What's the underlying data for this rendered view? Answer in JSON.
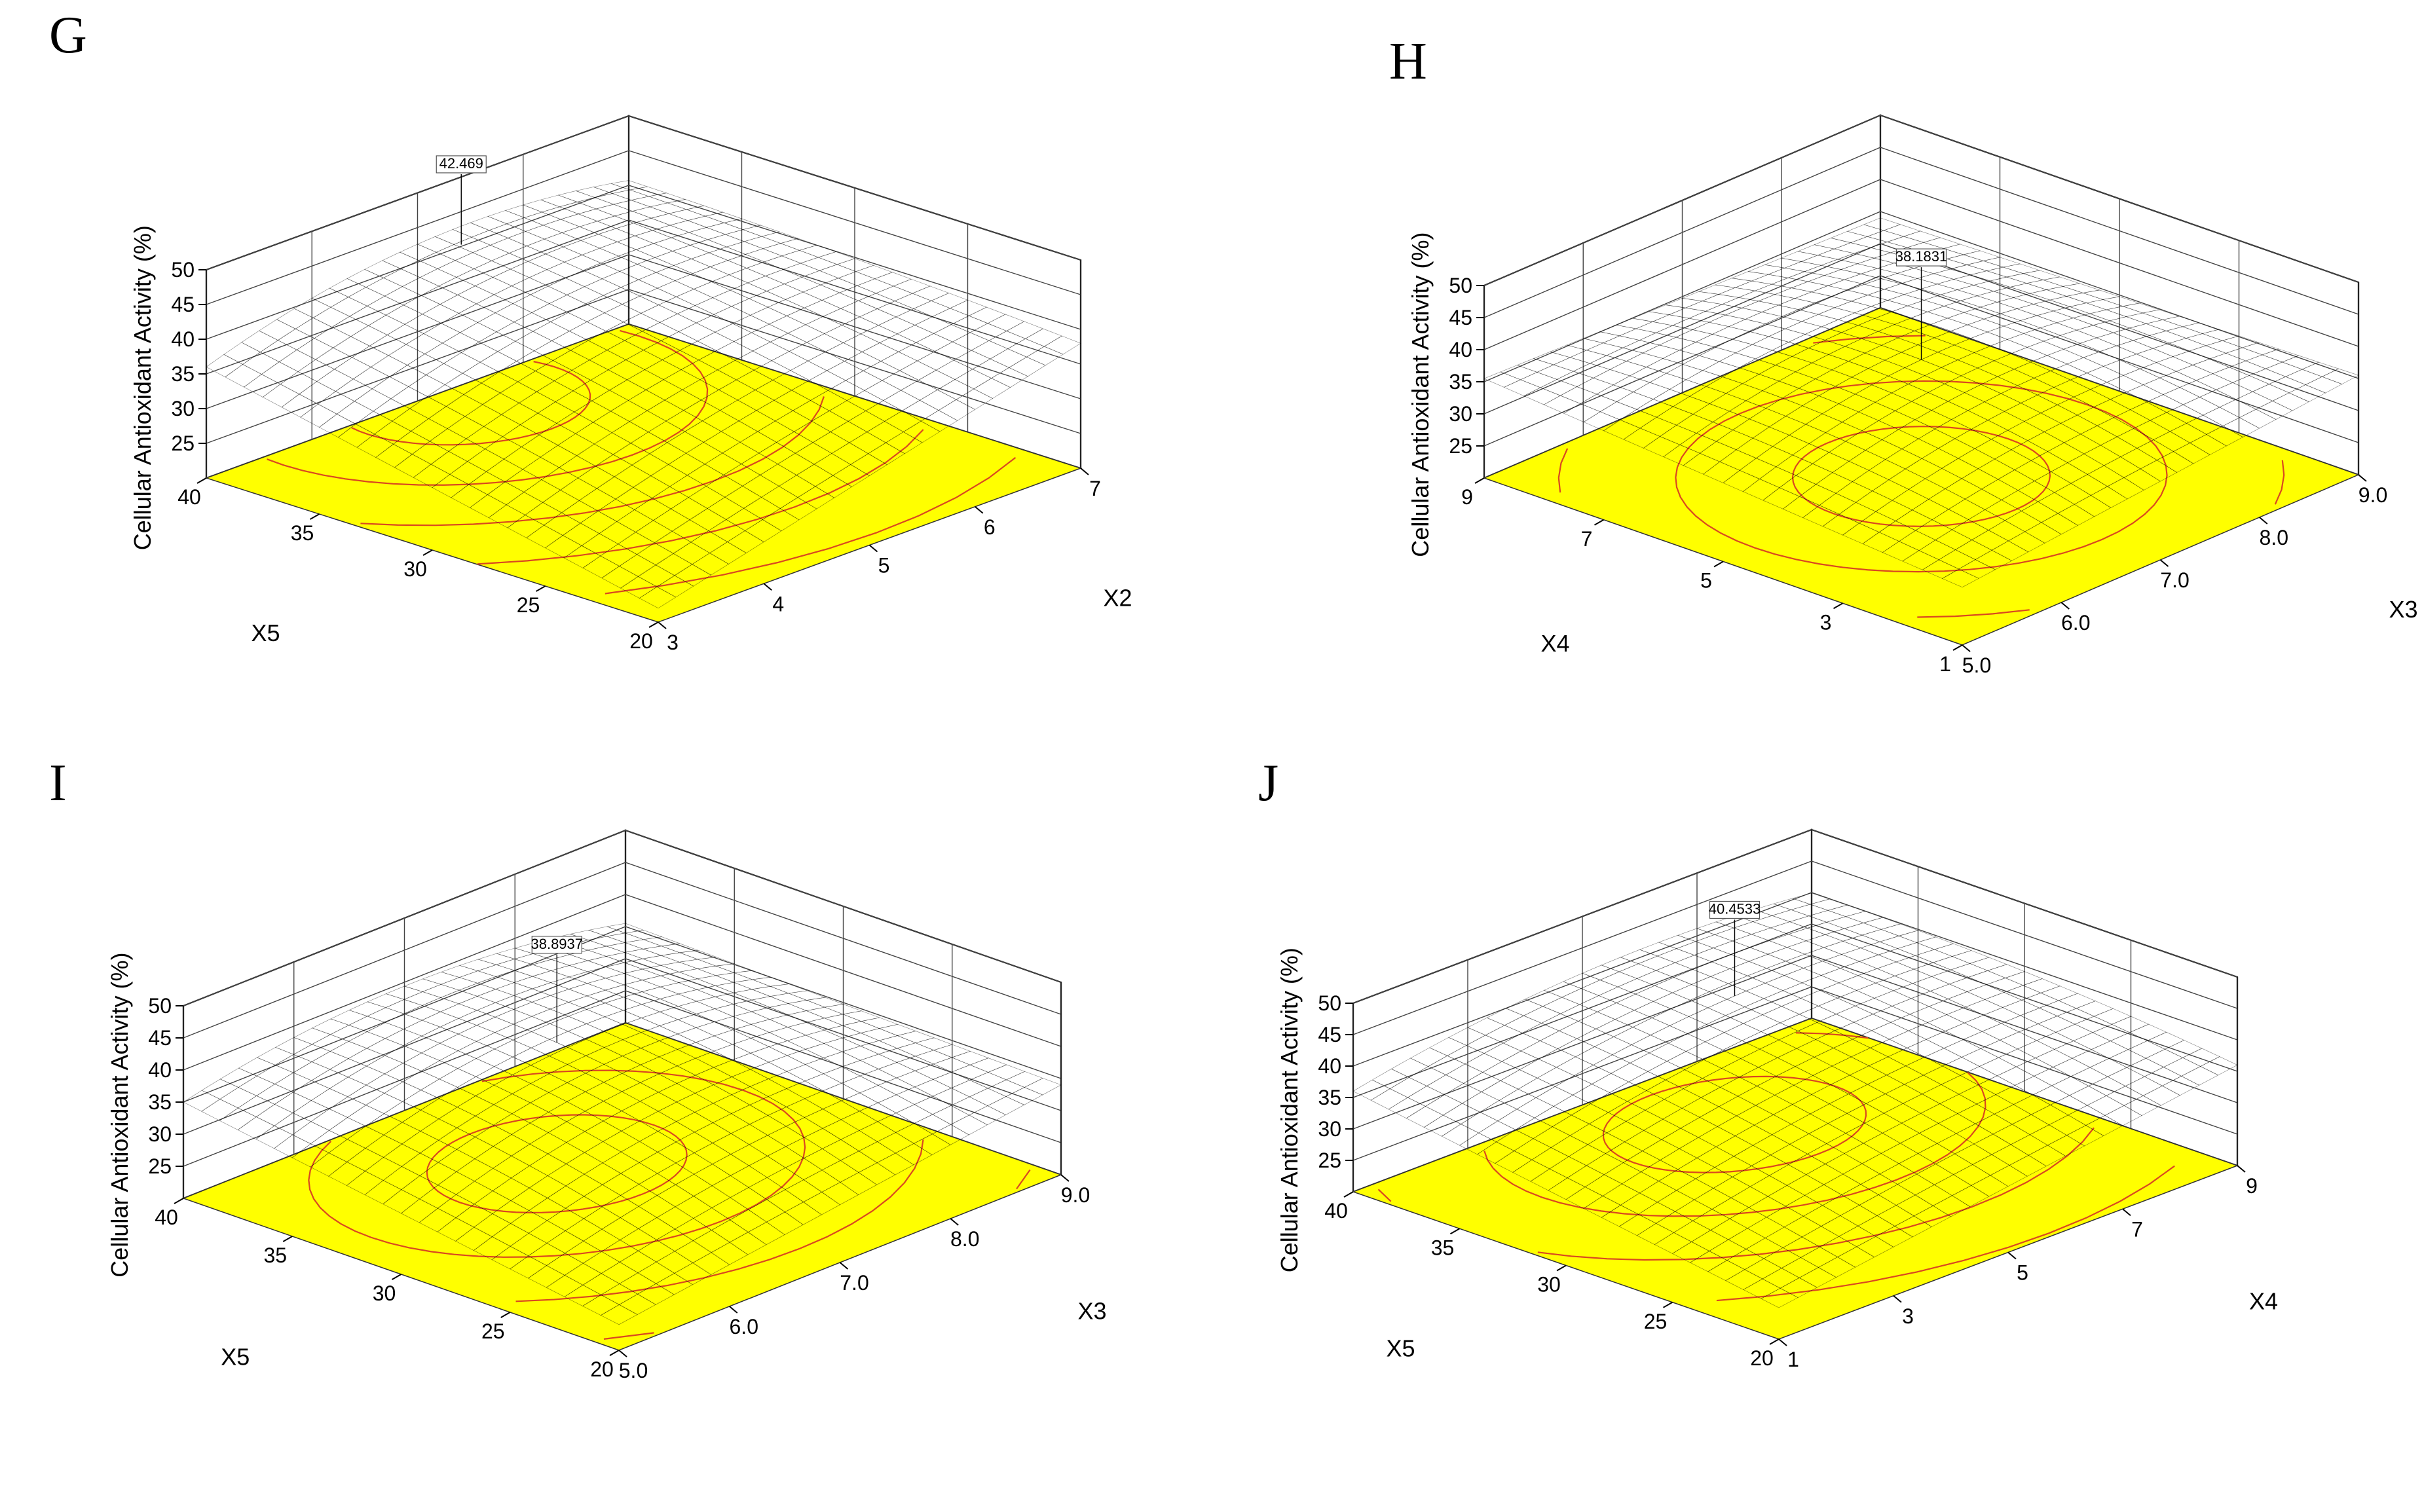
{
  "figure": {
    "background": "#ffffff",
    "surface_colors": [
      "#ff3030",
      "#ff40a0",
      "#ff40ff"
    ],
    "floor_color": "#ffff00",
    "contour_color": "#d94820"
  },
  "chart_data": [
    {
      "panel": "G",
      "type": "surface3d",
      "zlabel": "Cellular Antioxidant Activity (%)",
      "zticks": [
        "25",
        "30",
        "35",
        "40",
        "45",
        "50"
      ],
      "zlim": [
        20,
        50
      ],
      "left_axis": {
        "label": "X5",
        "ticks": [
          "20",
          "25",
          "30",
          "35",
          "40"
        ],
        "range": [
          20,
          40
        ]
      },
      "right_axis": {
        "label": "X2",
        "ticks": [
          "3",
          "4",
          "5",
          "6",
          "7"
        ],
        "range": [
          3,
          7
        ]
      },
      "max_value": "42.469",
      "max_at": [
        0.95,
        0.55
      ],
      "corners": {
        "origin": 22.0,
        "right": 38.0,
        "left": 36.0,
        "far": 39.0
      }
    },
    {
      "panel": "H",
      "type": "surface3d",
      "zlabel": "Cellular Antioxidant Activity (%)",
      "zticks": [
        "25",
        "30",
        "35",
        "40",
        "45",
        "50"
      ],
      "zlim": [
        20,
        50
      ],
      "left_axis": {
        "label": "X4",
        "ticks": [
          "1",
          "3",
          "5",
          "7",
          "9"
        ],
        "range": [
          1,
          9
        ]
      },
      "right_axis": {
        "label": "X3",
        "ticks": [
          "5.0",
          "6.0",
          "7.0",
          "8.0",
          "9.0"
        ],
        "range": [
          5,
          9
        ]
      },
      "max_value": "38.1831",
      "max_at": [
        0.5,
        0.5
      ],
      "corners": {
        "origin": 29.0,
        "right": 35.5,
        "left": 35.5,
        "far": 34.0
      }
    },
    {
      "panel": "I",
      "type": "surface3d",
      "zlabel": "Cellular Antioxidant Activity (%)",
      "zticks": [
        "25",
        "30",
        "35",
        "40",
        "45",
        "50"
      ],
      "zlim": [
        20,
        50
      ],
      "left_axis": {
        "label": "X5",
        "ticks": [
          "20",
          "25",
          "30",
          "35",
          "40"
        ],
        "range": [
          20,
          40
        ]
      },
      "right_axis": {
        "label": "X3",
        "ticks": [
          "5.0",
          "6.0",
          "7.0",
          "8.0",
          "9.0"
        ],
        "range": [
          5,
          9
        ]
      },
      "max_value": "38.8937",
      "max_at": [
        0.65,
        0.5
      ],
      "corners": {
        "origin": 24.0,
        "right": 34.0,
        "left": 35.0,
        "far": 35.5
      }
    },
    {
      "panel": "J",
      "type": "surface3d",
      "zlabel": "Cellular Antioxidant Activity (%)",
      "zticks": [
        "25",
        "30",
        "35",
        "40",
        "45",
        "50"
      ],
      "zlim": [
        20,
        50
      ],
      "left_axis": {
        "label": "X5",
        "ticks": [
          "20",
          "25",
          "30",
          "35",
          "40"
        ],
        "range": [
          20,
          40
        ]
      },
      "right_axis": {
        "label": "X4",
        "ticks": [
          "1",
          "3",
          "5",
          "7",
          "9"
        ],
        "range": [
          1,
          9
        ]
      },
      "max_value": "40.4533",
      "max_at": [
        0.75,
        0.6
      ],
      "corners": {
        "origin": 25.0,
        "right": 36.0,
        "left": 36.0,
        "far": 37.5
      }
    }
  ]
}
